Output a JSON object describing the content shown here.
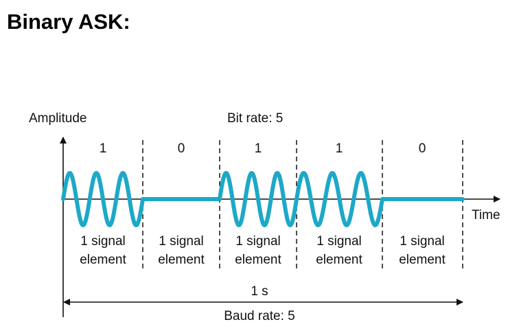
{
  "title": "Binary ASK:",
  "diagram": {
    "y_axis_label": "Amplitude",
    "x_axis_label": "Time",
    "bit_rate_label": "Bit rate: 5",
    "baud_rate_label": "Baud rate: 5",
    "duration_label": "1 s",
    "bits": [
      "1",
      "0",
      "1",
      "1",
      "0"
    ],
    "element_label_line1": "1 signal",
    "element_label_line2": "element",
    "colors": {
      "wave": "#1ea8c8",
      "bits": "#d6247e",
      "axes": "#111111"
    },
    "cycles_per_one_bit": 3
  }
}
